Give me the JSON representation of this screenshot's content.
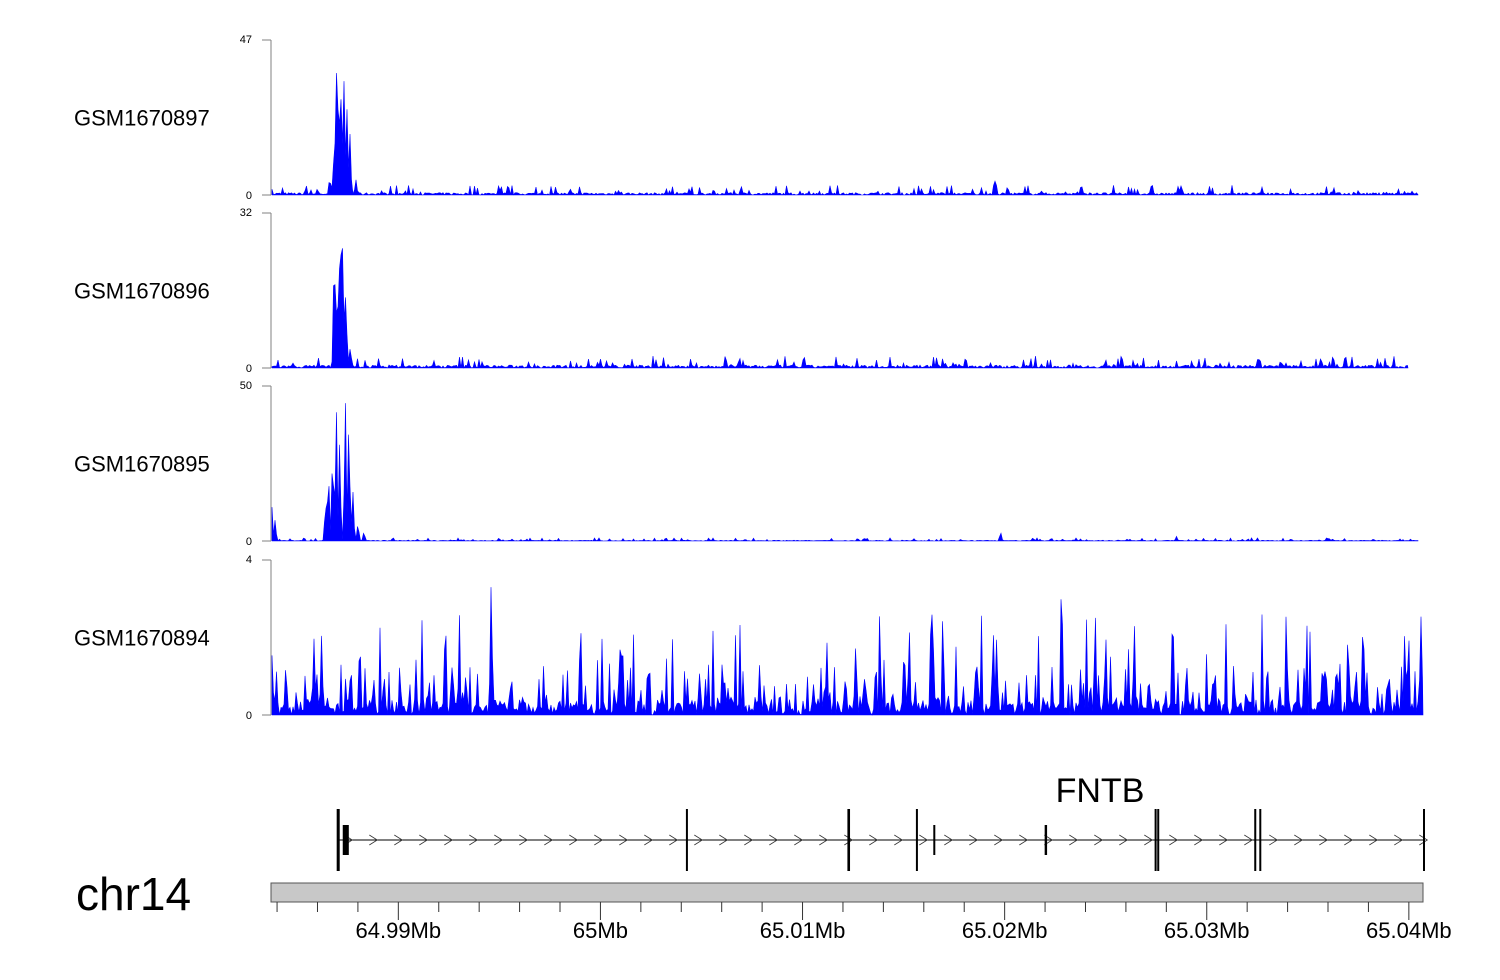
{
  "chart_data": {
    "type": "area",
    "title": "",
    "chromosome": "chr14",
    "xlim_mb": [
      64.9837,
      65.0407
    ],
    "axis": {
      "tick_labels": [
        "64.99Mb",
        "65Mb",
        "65.01Mb",
        "65.02Mb",
        "65.03Mb",
        "65.04Mb"
      ],
      "major_ticks_mb": [
        64.99,
        65.0,
        65.01,
        65.02,
        65.03,
        65.04
      ],
      "minor_step_kb": 2
    },
    "tracks": [
      {
        "name": "GSM1670897",
        "ylim": [
          0,
          47
        ],
        "ytick_labels": [
          "47",
          "0"
        ],
        "baseline": 1.2,
        "peaks": [
          [
            64.98371,
            3
          ],
          [
            64.986,
            2
          ],
          [
            64.9866,
            6
          ],
          [
            64.9868,
            10
          ],
          [
            64.98693,
            47
          ],
          [
            64.98705,
            35
          ],
          [
            64.98715,
            40
          ],
          [
            64.9873,
            40
          ],
          [
            64.98745,
            34
          ],
          [
            64.9876,
            22
          ],
          [
            64.9879,
            5
          ],
          [
            65.01955,
            5
          ],
          [
            65.02871,
            3
          ],
          [
            65.0056,
            2
          ],
          [
            64.995,
            2
          ],
          [
            64.9985,
            2
          ]
        ]
      },
      {
        "name": "GSM1670896",
        "ylim": [
          0,
          32
        ],
        "ytick_labels": [
          "32",
          "0"
        ],
        "baseline": 1.0,
        "peaks": [
          [
            64.98683,
            24
          ],
          [
            64.98698,
            18
          ],
          [
            64.98713,
            32
          ],
          [
            64.98725,
            30
          ],
          [
            64.9874,
            16
          ],
          [
            64.9876,
            4
          ],
          [
            65.00619,
            3
          ],
          [
            65.0,
            2
          ],
          [
            65.025,
            2
          ]
        ]
      },
      {
        "name": "GSM1670895",
        "ylim": [
          0,
          50
        ],
        "ytick_labels": [
          "50",
          "0"
        ],
        "baseline": 0.4,
        "peaks": [
          [
            64.98371,
            20
          ],
          [
            64.9839,
            8
          ],
          [
            64.9864,
            15
          ],
          [
            64.98655,
            25
          ],
          [
            64.98675,
            28
          ],
          [
            64.98693,
            47
          ],
          [
            64.9871,
            32
          ],
          [
            64.98738,
            45
          ],
          [
            64.98755,
            44
          ],
          [
            64.98775,
            20
          ],
          [
            64.988,
            6
          ],
          [
            64.9883,
            3
          ],
          [
            65.0198,
            3
          ],
          [
            65.0285,
            1.5
          ]
        ]
      },
      {
        "name": "GSM1670894",
        "ylim": [
          0,
          4
        ],
        "ytick_labels": [
          "4",
          "0"
        ],
        "baseline": 0.5,
        "noisy": true,
        "peaks": [
          [
            64.98371,
            2.8
          ],
          [
            64.9862,
            2.5
          ],
          [
            64.9881,
            2.3
          ],
          [
            64.99233,
            2.8
          ],
          [
            64.9946,
            4
          ],
          [
            64.99901,
            2.9
          ],
          [
            65.001,
            2.3
          ],
          [
            65.0112,
            2.3
          ],
          [
            65.015,
            1.7
          ],
          [
            65.0196,
            2.3
          ],
          [
            65.02282,
            4
          ],
          [
            65.025,
            2.3
          ],
          [
            65.02832,
            3.4
          ],
          [
            65.033,
            1.7
          ],
          [
            65.0399,
            1.7
          ]
        ]
      }
    ],
    "gene": {
      "name": "FNTB",
      "strand": "+",
      "start_mb": 64.98703,
      "end_mb": 65.04074,
      "exons_mb": [
        [
          64.98695,
          64.9871
        ],
        [
          64.98725,
          64.98755
        ],
        [
          65.00423,
          65.0043
        ],
        [
          65.01222,
          65.01235
        ],
        [
          65.01561,
          65.01568
        ],
        [
          65.01647,
          65.01651
        ],
        [
          65.02198,
          65.0221
        ],
        [
          65.02742,
          65.02752
        ],
        [
          65.02755,
          65.02762
        ],
        [
          65.03235,
          65.03245
        ],
        [
          65.0326,
          65.03267
        ],
        [
          65.0407,
          65.04078
        ]
      ]
    }
  },
  "colors": {
    "signal": "#0000ff",
    "axis": "#808080",
    "gene": "#000000",
    "ideogram": "#c8c8c8"
  }
}
